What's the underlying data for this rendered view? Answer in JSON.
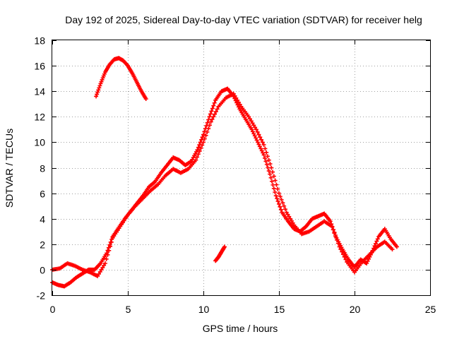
{
  "chart_data": {
    "type": "scatter",
    "title": "Day 192 of 2025, Sidereal Day-to-day VTEC variation (SDTVAR) for receiver helg",
    "xlabel": "GPS time / hours",
    "ylabel": "SDTVAR / TECUs",
    "xlim": [
      0,
      25
    ],
    "ylim": [
      -2,
      18
    ],
    "xticks": [
      0,
      5,
      10,
      15,
      20,
      25
    ],
    "yticks": [
      -2,
      0,
      2,
      4,
      6,
      8,
      10,
      12,
      14,
      16,
      18
    ],
    "grid": true,
    "marker": "+",
    "color": "#ff0000",
    "series": [
      {
        "name": "main-trace-a",
        "x": [
          0.0,
          0.4,
          0.8,
          1.2,
          1.6,
          2.0,
          2.4,
          2.8,
          3.2,
          3.6,
          4.0,
          4.4,
          4.8,
          5.2,
          5.6,
          6.0,
          6.4,
          6.8,
          7.2,
          7.6,
          8.0,
          8.4,
          8.8,
          9.2,
          9.6,
          10.0,
          10.4,
          10.8,
          11.2,
          11.6,
          12.0,
          12.4,
          12.8,
          13.2,
          13.6,
          14.0,
          14.4,
          14.8,
          15.2,
          15.6,
          16.0,
          16.4,
          16.8,
          17.2,
          17.6,
          18.0,
          18.4,
          18.8,
          19.2,
          19.6,
          20.0,
          20.4,
          20.8,
          21.2,
          21.6,
          22.0,
          22.4,
          22.8
        ],
        "y": [
          -1.0,
          -1.2,
          -1.3,
          -1.0,
          -0.6,
          -0.3,
          0.0,
          0.0,
          0.5,
          1.3,
          2.6,
          3.3,
          4.0,
          4.6,
          5.2,
          5.8,
          6.5,
          6.9,
          7.6,
          8.2,
          8.8,
          8.6,
          8.2,
          8.5,
          9.4,
          10.6,
          12.0,
          13.3,
          14.0,
          14.2,
          13.6,
          12.6,
          11.8,
          11.0,
          10.0,
          9.0,
          7.5,
          5.8,
          4.5,
          3.8,
          3.2,
          3.0,
          3.4,
          4.0,
          4.2,
          4.4,
          3.8,
          2.5,
          1.6,
          0.8,
          0.2,
          0.8,
          0.5,
          1.5,
          2.6,
          3.2,
          2.4,
          1.8
        ]
      },
      {
        "name": "main-trace-b",
        "x": [
          0.0,
          0.5,
          1.0,
          1.5,
          2.0,
          2.5,
          3.0,
          3.5,
          4.0,
          4.5,
          5.0,
          5.5,
          6.0,
          6.5,
          7.0,
          7.5,
          8.0,
          8.5,
          9.0,
          9.5,
          10.0,
          10.5,
          11.0,
          11.5,
          12.0,
          12.5,
          13.0,
          13.5,
          14.0,
          14.5,
          15.0,
          15.5,
          16.0,
          16.5,
          17.0,
          17.5,
          18.0,
          18.5,
          19.0,
          19.5,
          20.0,
          20.5,
          21.0,
          21.5,
          22.0,
          22.5
        ],
        "y": [
          0.0,
          0.1,
          0.5,
          0.3,
          0.0,
          -0.2,
          -0.5,
          0.5,
          2.5,
          3.4,
          4.3,
          5.0,
          5.6,
          6.2,
          6.7,
          7.4,
          7.9,
          7.6,
          7.9,
          8.6,
          10.0,
          11.6,
          12.8,
          13.5,
          13.8,
          12.8,
          12.0,
          11.0,
          9.8,
          8.0,
          6.0,
          4.5,
          3.5,
          2.8,
          3.0,
          3.4,
          3.8,
          3.4,
          1.8,
          0.6,
          -0.2,
          0.6,
          1.2,
          1.8,
          2.2,
          1.6
        ]
      },
      {
        "name": "morning-arc",
        "x": [
          2.9,
          3.2,
          3.5,
          3.8,
          4.1,
          4.4,
          4.7,
          5.0,
          5.3,
          5.6,
          5.9,
          6.2
        ],
        "y": [
          13.6,
          14.6,
          15.5,
          16.1,
          16.5,
          16.6,
          16.4,
          16.0,
          15.4,
          14.7,
          14.0,
          13.4
        ]
      },
      {
        "name": "short-segment",
        "x": [
          10.8,
          11.0,
          11.2,
          11.4
        ],
        "y": [
          0.7,
          1.0,
          1.4,
          1.8
        ]
      }
    ]
  }
}
